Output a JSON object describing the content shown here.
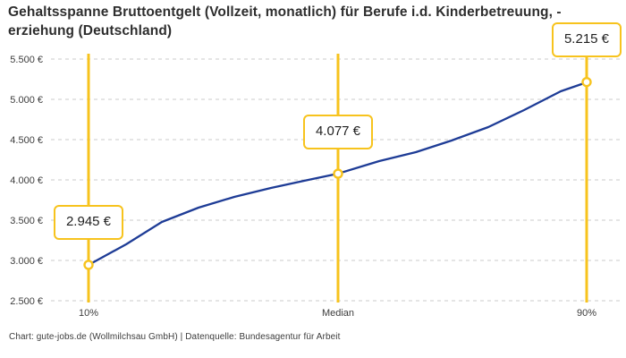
{
  "title": "Gehaltsspanne Bruttoentgelt (Vollzeit, monatlich) für Berufe i.d. Kinderbetreuung, -\nerziehung (Deutschland)",
  "footer": "Chart: gute-jobs.de (Wollmilchsau GmbH) | Datenquelle: Bundesagentur für Arbeit",
  "colors": {
    "accent_yellow": "#f7c31d",
    "line_blue": "#1e3c96",
    "grid": "#cbcbcb",
    "title_text": "#2e2e2e",
    "axis_text": "#3c3c3c",
    "marker_fill": "#ffffff"
  },
  "chart_data": {
    "type": "line",
    "title": "Gehaltsspanne Bruttoentgelt (Vollzeit, monatlich) für Berufe i.d. Kinderbetreuung, -erziehung (Deutschland)",
    "categories": [
      "10%",
      "Median",
      "90%"
    ],
    "values": [
      2945,
      4077,
      5215
    ],
    "value_labels": [
      "2.945 €",
      "4.077 €",
      "5.215 €"
    ],
    "y_tick_values": [
      2500,
      3000,
      3500,
      4000,
      4500,
      5000,
      5500
    ],
    "y_tick_labels": [
      "2.500 €",
      "3.000 €",
      "3.500 €",
      "4.000 €",
      "4.500 €",
      "5.000 €",
      "5.500 €"
    ],
    "ylim": [
      2500,
      5500
    ],
    "xlabel": "",
    "ylabel": "",
    "grid": "horizontal-dashed",
    "legend": "none",
    "currency": "EUR"
  }
}
